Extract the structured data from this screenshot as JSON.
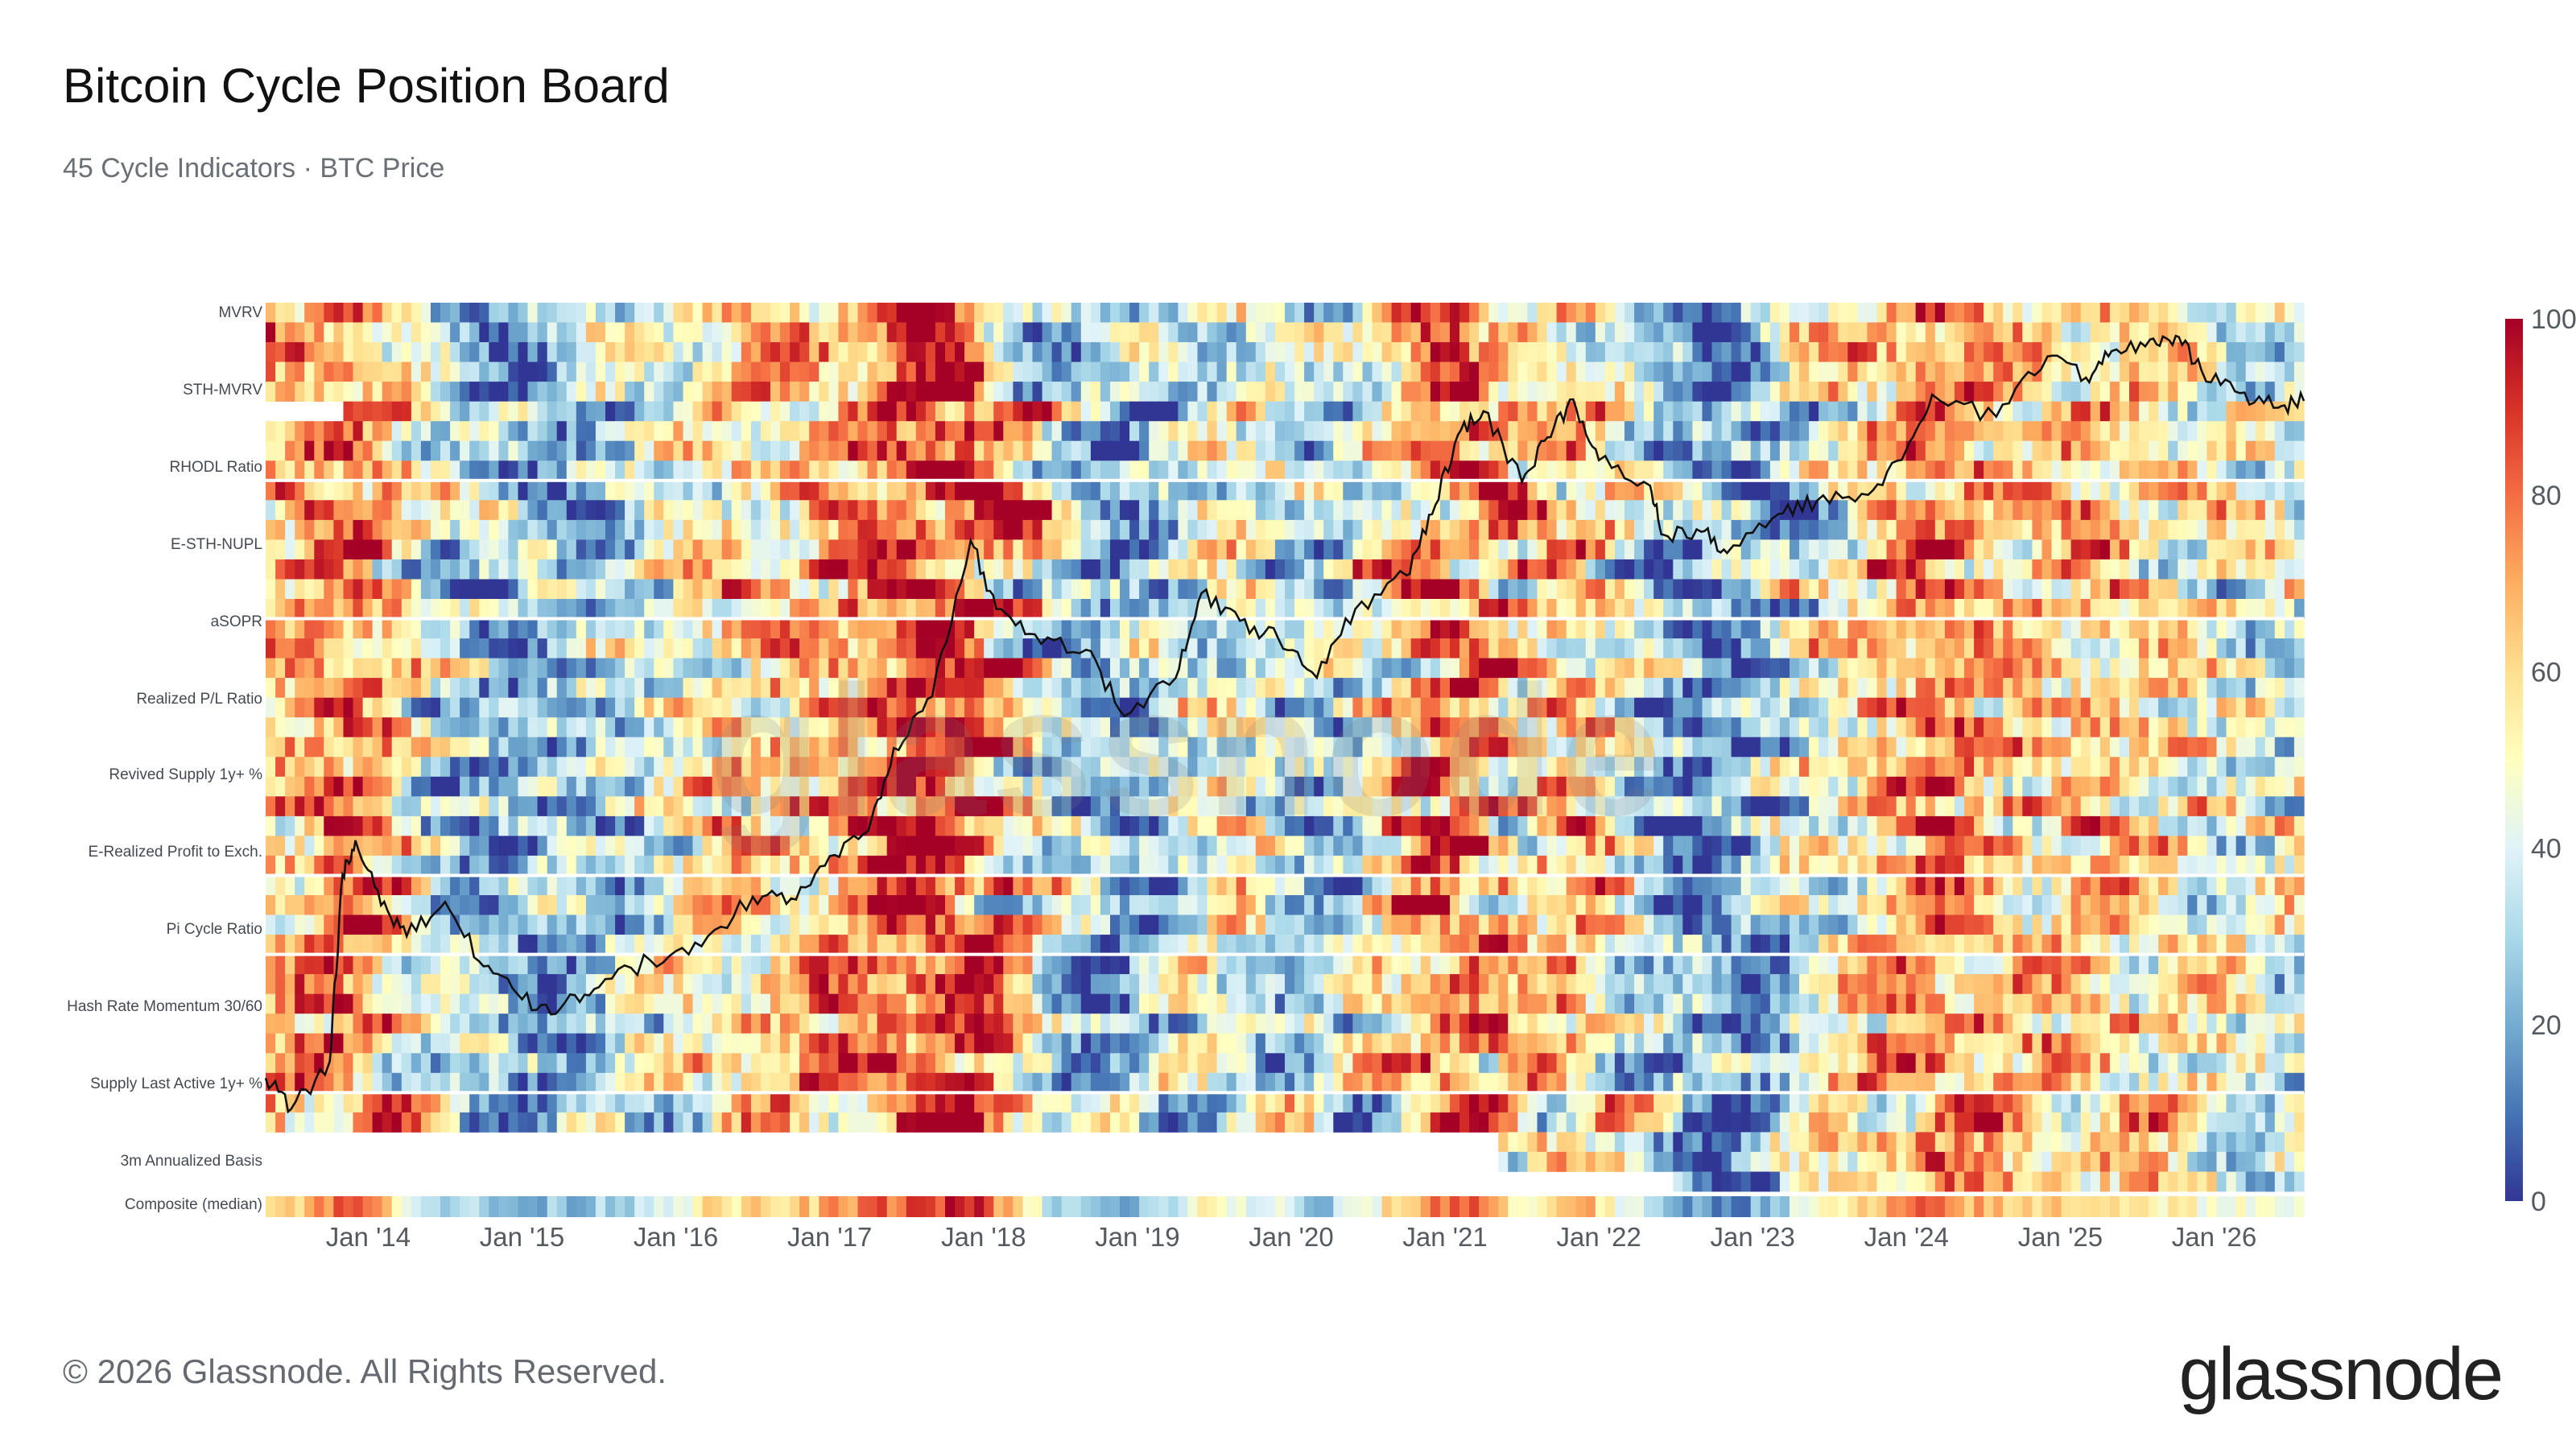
{
  "header": {
    "title": "Bitcoin Cycle Position Board",
    "subtitle": "45 Cycle Indicators · BTC Price"
  },
  "footer": {
    "copyright": "© 2026 Glassnode. All Rights Reserved."
  },
  "brand": {
    "logo_text": "glassnode",
    "watermark_text": "glassnode"
  },
  "chart_data": {
    "type": "heatmap",
    "title": "Bitcoin Cycle Position Board",
    "subtitle": "45 Cycle Indicators · BTC Price",
    "y_labels": [
      "MVRV",
      "STH-MVRV",
      "RHODL Ratio",
      "E-STH-NUPL",
      "aSOPR",
      "Realized P/L Ratio",
      "Revived Supply 1y+ %",
      "E-Realized Profit to Exch.",
      "Pi Cycle Ratio",
      "Hash Rate Momentum 30/60",
      "Supply Last Active 1y+ %",
      "3m Annualized Basis",
      "Composite (median)"
    ],
    "x_ticks": [
      "Jan '14",
      "Jan '15",
      "Jan '16",
      "Jan '17",
      "Jan '18",
      "Jan '19",
      "Jan '20",
      "Jan '21",
      "Jan '22",
      "Jan '23",
      "Jan '24",
      "Jan '25",
      "Jan '26"
    ],
    "x_range": [
      "2013-05",
      "2026-08"
    ],
    "indicator_rows": 45,
    "colorbar": {
      "min": 0,
      "max": 100,
      "ticks": [
        0,
        20,
        40,
        60,
        80,
        100
      ],
      "low_color": "#313695",
      "mid_color": "#ffffbf",
      "high_color": "#a50026"
    },
    "composite_median": {
      "dates": [
        "2013-06",
        "2013-12",
        "2014-06",
        "2015-01",
        "2015-08",
        "2016-03",
        "2016-10",
        "2017-05",
        "2017-12",
        "2018-06",
        "2018-12",
        "2019-06",
        "2019-12",
        "2020-03",
        "2020-10",
        "2021-03",
        "2021-07",
        "2021-11",
        "2022-06",
        "2022-12",
        "2023-06",
        "2024-03",
        "2024-09",
        "2025-03",
        "2025-09",
        "2026-06"
      ],
      "values": [
        60,
        85,
        35,
        20,
        30,
        55,
        60,
        80,
        95,
        35,
        15,
        50,
        40,
        20,
        65,
        90,
        45,
        75,
        20,
        15,
        45,
        80,
        60,
        65,
        55,
        40
      ]
    },
    "btc_price_series": {
      "name": "BTC Price",
      "scale": "log",
      "dates": [
        "2013-05",
        "2013-07",
        "2013-10",
        "2013-11",
        "2013-12",
        "2014-02",
        "2014-04",
        "2014-07",
        "2014-10",
        "2015-01",
        "2015-04",
        "2015-07",
        "2015-11",
        "2016-03",
        "2016-07",
        "2016-10",
        "2017-01",
        "2017-04",
        "2017-06",
        "2017-09",
        "2017-12",
        "2018-02",
        "2018-05",
        "2018-09",
        "2018-12",
        "2019-04",
        "2019-06",
        "2019-09",
        "2019-12",
        "2020-03",
        "2020-06",
        "2020-10",
        "2020-12",
        "2021-02",
        "2021-04",
        "2021-07",
        "2021-09",
        "2021-11",
        "2022-01",
        "2022-05",
        "2022-06",
        "2022-09",
        "2022-11",
        "2023-03",
        "2023-06",
        "2023-10",
        "2024-01",
        "2024-03",
        "2024-08",
        "2024-12",
        "2025-03",
        "2025-05",
        "2025-08",
        "2025-10",
        "2025-12",
        "2026-03",
        "2026-06",
        "2026-08"
      ],
      "values": [
        120,
        90,
        140,
        800,
        1100,
        600,
        450,
        620,
        340,
        250,
        230,
        280,
        360,
        410,
        650,
        640,
        950,
        1200,
        2600,
        4200,
        18000,
        9500,
        7500,
        6500,
        3500,
        5000,
        11000,
        8500,
        7200,
        5000,
        9500,
        13000,
        23000,
        48000,
        60000,
        31000,
        47000,
        67000,
        38000,
        30000,
        19000,
        19500,
        16000,
        23000,
        26000,
        27500,
        42000,
        70000,
        57000,
        100000,
        82000,
        105000,
        117000,
        121000,
        88000,
        71000,
        62000,
        66000
      ]
    }
  }
}
